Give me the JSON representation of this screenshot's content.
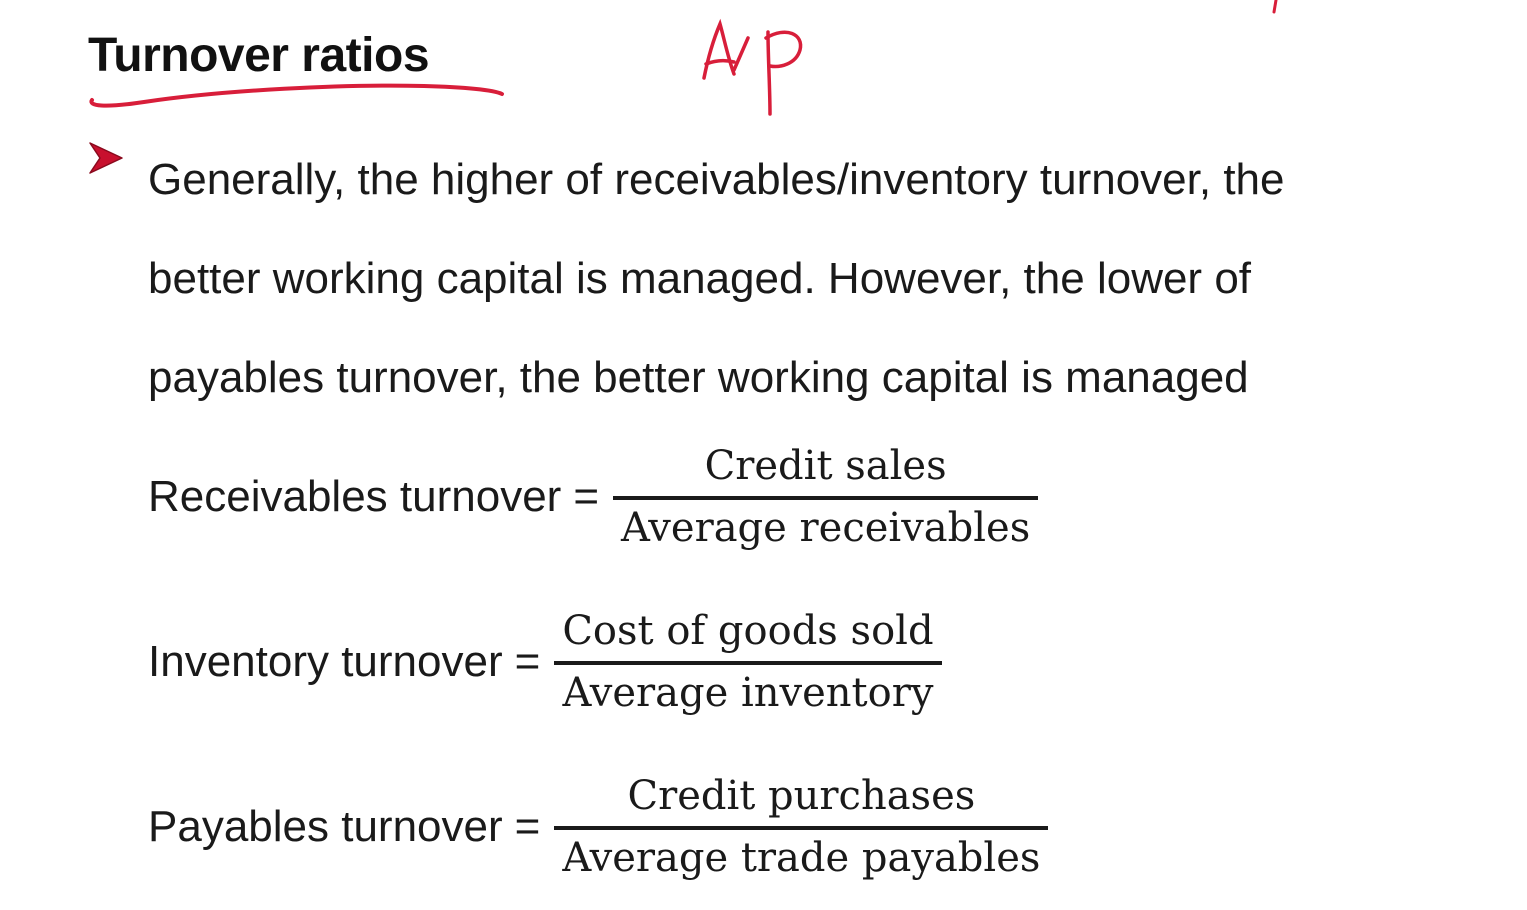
{
  "slide": {
    "title": "Turnover ratios",
    "bullet_lines": [
      "Generally, the higher of receivables/inventory turnover, the",
      "better working capital is managed. However, the lower of",
      "payables turnover, the better working capital is managed"
    ],
    "handwritten_note": "A/P",
    "formulas": [
      {
        "lhs": "Receivables turnover",
        "equals": "=",
        "numerator": "Credit sales",
        "denominator": "Average receivables"
      },
      {
        "lhs": "Inventory turnover",
        "equals": "=",
        "numerator": "Cost of goods sold",
        "denominator": "Average inventory"
      },
      {
        "lhs": "Payables turnover",
        "equals": "=",
        "numerator": "Credit purchases",
        "denominator": "Average trade payables"
      }
    ],
    "colors": {
      "ink": "#d81e3a",
      "bullet": "#c8102e",
      "text": "#1a1a1a",
      "background": "#ffffff"
    },
    "icons": {
      "bullet": "arrowhead-bullet-icon"
    }
  }
}
